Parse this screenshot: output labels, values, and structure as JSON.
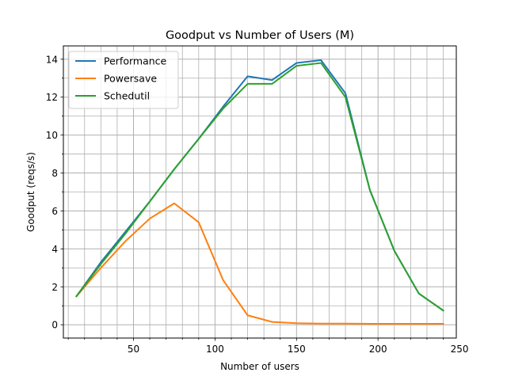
{
  "chart_data": {
    "type": "line",
    "title": "Goodput vs Number of Users (M)",
    "xlabel": "Number of users",
    "ylabel": "Goodput (reqs/s)",
    "xlim": [
      7,
      248
    ],
    "ylim": [
      -0.7,
      14.7
    ],
    "xticks": [
      50,
      100,
      150,
      200,
      250
    ],
    "yticks": [
      0,
      2,
      4,
      6,
      8,
      10,
      12,
      14
    ],
    "x_minor_step": 10,
    "y_minor_step": 1,
    "grid": true,
    "legend_position": "top-left",
    "series": [
      {
        "name": "Performance",
        "color": "#1f77b4",
        "x": [
          15,
          30,
          45,
          60,
          75,
          90,
          105,
          120,
          135,
          150,
          165,
          180,
          195,
          210,
          225,
          240
        ],
        "y": [
          1.5,
          3.3,
          4.9,
          6.5,
          8.2,
          9.8,
          11.5,
          13.1,
          12.9,
          13.8,
          13.95,
          12.2,
          7.1,
          3.9,
          1.65,
          0.75
        ]
      },
      {
        "name": "Powersave",
        "color": "#ff7f0e",
        "x": [
          15,
          30,
          45,
          60,
          75,
          90,
          105,
          120,
          135,
          150,
          165,
          180,
          195,
          210,
          225,
          240
        ],
        "y": [
          1.5,
          3.0,
          4.4,
          5.6,
          6.4,
          5.4,
          2.35,
          0.5,
          0.15,
          0.08,
          0.06,
          0.06,
          0.05,
          0.05,
          0.05,
          0.05
        ]
      },
      {
        "name": "Schedutil",
        "color": "#2ca02c",
        "x": [
          15,
          30,
          45,
          60,
          75,
          90,
          105,
          120,
          135,
          150,
          165,
          180,
          195,
          210,
          225,
          240
        ],
        "y": [
          1.5,
          3.2,
          4.8,
          6.5,
          8.2,
          9.8,
          11.4,
          12.7,
          12.7,
          13.65,
          13.8,
          12.0,
          7.1,
          3.9,
          1.65,
          0.75
        ]
      }
    ]
  }
}
